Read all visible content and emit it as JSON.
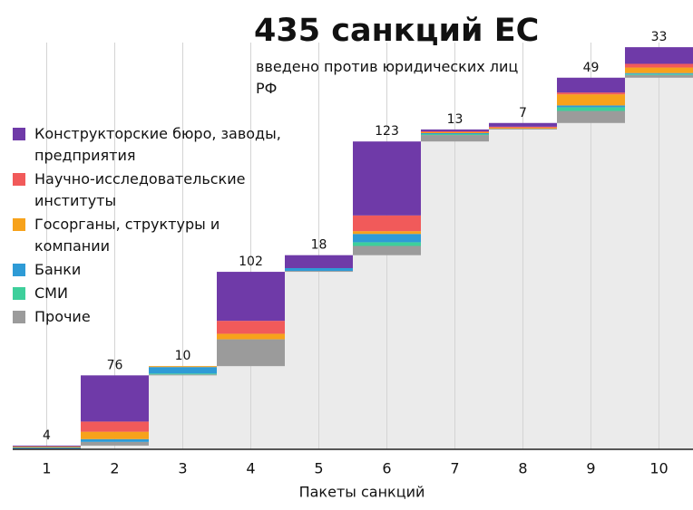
{
  "chart_data": {
    "type": "stacked_waterfall",
    "title": "435 санкций ЕС",
    "subtitle": "введено против юридических лиц РФ",
    "x_label": "Пакеты санкций",
    "categories": [
      "1",
      "2",
      "3",
      "4",
      "5",
      "6",
      "7",
      "8",
      "9",
      "10"
    ],
    "totals": [
      4,
      76,
      10,
      102,
      18,
      123,
      13,
      7,
      49,
      33
    ],
    "series": [
      {
        "name": "Прочие",
        "color": "#9b9b9b",
        "values": [
          1,
          4,
          1,
          29,
          1,
          10,
          7,
          1,
          13,
          3
        ]
      },
      {
        "name": "СМИ",
        "color": "#3ecf9b",
        "values": [
          0,
          0,
          1,
          0,
          0,
          4,
          1,
          0,
          4,
          1
        ]
      },
      {
        "name": "Банки",
        "color": "#2e9bd6",
        "values": [
          1,
          3,
          7,
          0,
          3,
          9,
          1,
          0,
          2,
          1
        ]
      },
      {
        "name": "Госорганы, структуры и компании",
        "color": "#f7a21b",
        "values": [
          1,
          8,
          1,
          6,
          0,
          3,
          1,
          1,
          12,
          6
        ]
      },
      {
        "name": "Научно-исследовательские институты",
        "color": "#f15a5a",
        "values": [
          0,
          11,
          0,
          14,
          0,
          17,
          1,
          1,
          2,
          4
        ]
      },
      {
        "name": "Конструкторские бюро, заводы, предприятия",
        "color": "#6f3aa8",
        "values": [
          1,
          50,
          0,
          53,
          14,
          80,
          2,
          4,
          16,
          18
        ]
      }
    ],
    "ylim": [
      0,
      440
    ],
    "grid": true,
    "legend": "upper-left"
  }
}
